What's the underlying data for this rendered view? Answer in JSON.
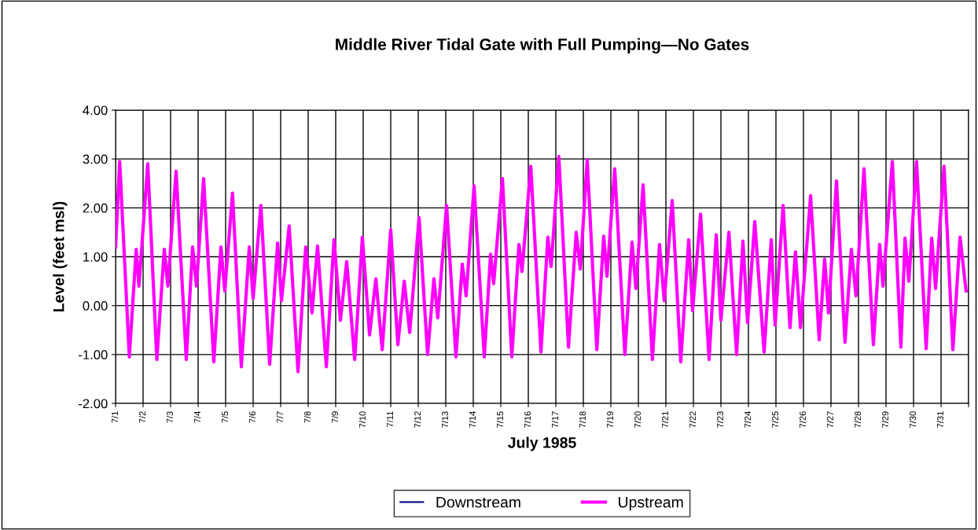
{
  "chart_data": {
    "type": "line",
    "title": "Middle River Tidal Gate with Full Pumping—No Gates",
    "xlabel": "July 1985",
    "ylabel": "Level (feet msl)",
    "xlim": [
      "1985-07-01",
      "1985-08-01"
    ],
    "ylim": [
      -2,
      4
    ],
    "xticks": [
      {
        "value": "1985-07-01",
        "label": "7/1"
      },
      {
        "value": "1985-07-02",
        "label": "7/2"
      },
      {
        "value": "1985-07-03",
        "label": "7/3"
      },
      {
        "value": "1985-07-04",
        "label": "7/4"
      },
      {
        "value": "1985-07-05",
        "label": "7/5"
      },
      {
        "value": "1985-07-06",
        "label": "7/6"
      },
      {
        "value": "1985-07-07",
        "label": "7/7"
      },
      {
        "value": "1985-07-08",
        "label": "7/8"
      },
      {
        "value": "1985-07-09",
        "label": "7/9"
      },
      {
        "value": "1985-07-10",
        "label": "7/10"
      },
      {
        "value": "1985-07-11",
        "label": "7/11"
      },
      {
        "value": "1985-07-12",
        "label": "7/12"
      },
      {
        "value": "1985-07-13",
        "label": "7/13"
      },
      {
        "value": "1985-07-14",
        "label": "7/14"
      },
      {
        "value": "1985-07-15",
        "label": "7/15"
      },
      {
        "value": "1985-07-16",
        "label": "7/16"
      },
      {
        "value": "1985-07-17",
        "label": "7/17"
      },
      {
        "value": "1985-07-18",
        "label": "7/18"
      },
      {
        "value": "1985-07-19",
        "label": "7/19"
      },
      {
        "value": "1985-07-20",
        "label": "7/20"
      },
      {
        "value": "1985-07-21",
        "label": "7/21"
      },
      {
        "value": "1985-07-22",
        "label": "7/22"
      },
      {
        "value": "1985-07-23",
        "label": "7/23"
      },
      {
        "value": "1985-07-24",
        "label": "7/24"
      },
      {
        "value": "1985-07-25",
        "label": "7/25"
      },
      {
        "value": "1985-07-26",
        "label": "7/26"
      },
      {
        "value": "1985-07-27",
        "label": "7/27"
      },
      {
        "value": "1985-07-28",
        "label": "7/28"
      },
      {
        "value": "1985-07-29",
        "label": "7/29"
      },
      {
        "value": "1985-07-30",
        "label": "7/30"
      },
      {
        "value": "1985-07-31",
        "label": "7/31"
      },
      {
        "value": "1985-08-01",
        "label": null
      }
    ],
    "yticks": [
      {
        "value": -2,
        "label": "-2.00"
      },
      {
        "value": -1,
        "label": "-1.00"
      },
      {
        "value": 0,
        "label": "0.00"
      },
      {
        "value": 1,
        "label": "1.00"
      },
      {
        "value": 2,
        "label": "2.00"
      },
      {
        "value": 3,
        "label": "3.00"
      },
      {
        "value": 4,
        "label": "4.00"
      }
    ],
    "grid": true,
    "legend": "bottom",
    "marker": "none",
    "line_style": "solid",
    "x": [
      "1985-07-01T00:00",
      "1985-07-01T03:36",
      "1985-07-01T12:00",
      "1985-07-01T18:00",
      "1985-07-01T20:24",
      "1985-07-02T04:05",
      "1985-07-02T12:00",
      "1985-07-02T18:29",
      "1985-07-02T21:36",
      "1985-07-03T04:48",
      "1985-07-03T13:41",
      "1985-07-03T19:12",
      "1985-07-03T22:34",
      "1985-07-04T04:48",
      "1985-07-04T13:41",
      "1985-07-04T19:55",
      "1985-07-04T23:17",
      "1985-07-05T06:00",
      "1985-07-05T13:41",
      "1985-07-05T20:38",
      "1985-07-06T00:00",
      "1985-07-06T06:43",
      "1985-07-06T14:24",
      "1985-07-06T21:22",
      "1985-07-07T00:43",
      "1985-07-07T07:26",
      "1985-07-07T15:07",
      "1985-07-07T21:50",
      "1985-07-08T03:22",
      "1985-07-08T08:10",
      "1985-07-08T15:50",
      "1985-07-08T22:34",
      "1985-07-09T04:05",
      "1985-07-09T09:36",
      "1985-07-09T16:34",
      "1985-07-09T23:17",
      "1985-07-10T05:31",
      "1985-07-10T11:02",
      "1985-07-10T16:34",
      "1985-07-11T00:00",
      "1985-07-11T06:14",
      "1985-07-11T11:46",
      "1985-07-11T16:34",
      "1985-07-12T00:43",
      "1985-07-12T08:10",
      "1985-07-12T13:41",
      "1985-07-12T17:02",
      "1985-07-13T00:43",
      "1985-07-13T08:53",
      "1985-07-13T14:24",
      "1985-07-13T17:46",
      "1985-07-14T00:43",
      "1985-07-14T09:36",
      "1985-07-14T15:07",
      "1985-07-14T17:46",
      "1985-07-15T01:26",
      "1985-07-15T09:36",
      "1985-07-15T15:50",
      "1985-07-15T18:29",
      "1985-07-16T02:10",
      "1985-07-16T11:02",
      "1985-07-16T17:02",
      "1985-07-16T19:55",
      "1985-07-17T02:38",
      "1985-07-17T11:02",
      "1985-07-17T17:46",
      "1985-07-17T21:22",
      "1985-07-18T03:22",
      "1985-07-18T11:46",
      "1985-07-18T17:46",
      "1985-07-18T20:38",
      "1985-07-19T03:22",
      "1985-07-19T12:14",
      "1985-07-19T18:29",
      "1985-07-19T21:50",
      "1985-07-20T04:05",
      "1985-07-20T12:14",
      "1985-07-20T18:29",
      "1985-07-20T22:34",
      "1985-07-21T05:31",
      "1985-07-21T12:58",
      "1985-07-21T19:55",
      "1985-07-21T23:17",
      "1985-07-22T06:14",
      "1985-07-22T13:41",
      "1985-07-22T19:55",
      "1985-07-23T00:00",
      "1985-07-23T06:58",
      "1985-07-23T13:41",
      "1985-07-23T19:12",
      "1985-07-23T23:17",
      "1985-07-24T05:31",
      "1985-07-24T13:41",
      "1985-07-24T19:55",
      "1985-07-24T23:17",
      "1985-07-25T06:14",
      "1985-07-25T12:14",
      "1985-07-25T17:02",
      "1985-07-25T21:22",
      "1985-07-26T06:14",
      "1985-07-26T13:41",
      "1985-07-26T18:29",
      "1985-07-26T21:50",
      "1985-07-27T04:48",
      "1985-07-27T12:14",
      "1985-07-27T17:46",
      "1985-07-27T21:50",
      "1985-07-28T04:48",
      "1985-07-28T12:58",
      "1985-07-28T18:29",
      "1985-07-28T21:22",
      "1985-07-29T05:31",
      "1985-07-29T12:58",
      "1985-07-29T16:34",
      "1985-07-29T19:55",
      "1985-07-30T02:38",
      "1985-07-30T11:02",
      "1985-07-30T15:50",
      "1985-07-30T19:12",
      "1985-07-31T02:38",
      "1985-07-31T10:19",
      "1985-07-31T16:34",
      "1985-07-31T21:50"
    ],
    "series": [
      {
        "name": "Downstream",
        "color": "#000080",
        "values": [
          null,
          null,
          null,
          null,
          null,
          null,
          null,
          null,
          null,
          null,
          null,
          null,
          null,
          null,
          null,
          null,
          null,
          null,
          null,
          null,
          null,
          null,
          null,
          null,
          null,
          null,
          null,
          null,
          null,
          null,
          null,
          null,
          null,
          null,
          null,
          null,
          null,
          null,
          null,
          null,
          null,
          null,
          null,
          null,
          null,
          null,
          null,
          null,
          null,
          null,
          null,
          null,
          null,
          null,
          null,
          null,
          null,
          null,
          null,
          null,
          null,
          null,
          null,
          null,
          null,
          null,
          null,
          null,
          null,
          null,
          null,
          null,
          null,
          null,
          null,
          null,
          null,
          null,
          null,
          null,
          null,
          null,
          null,
          null,
          null,
          null,
          null,
          null,
          null,
          null,
          null,
          null,
          null,
          null,
          null,
          null,
          null,
          null,
          null,
          null,
          null,
          null,
          null,
          null,
          null,
          null,
          null,
          null,
          null,
          null,
          null,
          null,
          null,
          null,
          null,
          null,
          null,
          null,
          null,
          null,
          null,
          null,
          null
        ]
      },
      {
        "name": "Upstream",
        "color": "#ff00ff",
        "values": [
          1.2,
          2.95,
          -1.05,
          1.15,
          0.4,
          2.9,
          -1.1,
          1.15,
          0.4,
          2.75,
          -1.1,
          1.2,
          0.4,
          2.6,
          -1.15,
          1.2,
          0.3,
          2.3,
          -1.25,
          1.2,
          0.15,
          2.05,
          -1.2,
          1.28,
          0.1,
          1.63,
          -1.35,
          1.2,
          -0.15,
          1.22,
          -1.25,
          1.35,
          -0.3,
          0.9,
          -1.1,
          1.4,
          -0.6,
          0.55,
          -0.9,
          1.55,
          -0.8,
          0.5,
          -0.55,
          1.8,
          -1.0,
          0.55,
          -0.25,
          2.05,
          -1.05,
          0.85,
          0.2,
          2.45,
          -1.05,
          1.05,
          0.45,
          2.6,
          -1.05,
          1.25,
          0.7,
          2.85,
          -0.95,
          1.4,
          0.8,
          3.05,
          -0.85,
          1.5,
          0.75,
          2.98,
          -0.9,
          1.42,
          0.6,
          2.8,
          -1.0,
          1.3,
          0.35,
          2.47,
          -1.1,
          1.25,
          0.1,
          2.15,
          -1.15,
          1.35,
          -0.1,
          1.87,
          -1.1,
          1.45,
          -0.3,
          1.5,
          -1.0,
          1.32,
          -0.35,
          1.72,
          -0.95,
          1.35,
          -0.4,
          2.05,
          -0.45,
          1.1,
          -0.45,
          2.25,
          -0.7,
          0.95,
          -0.15,
          2.55,
          -0.75,
          1.15,
          0.2,
          2.8,
          -0.8,
          1.25,
          0.4,
          2.95,
          -0.85,
          1.38,
          0.5,
          2.95,
          -0.88,
          1.38,
          0.35,
          2.85,
          -0.9,
          1.4,
          0.3
        ]
      }
    ]
  }
}
